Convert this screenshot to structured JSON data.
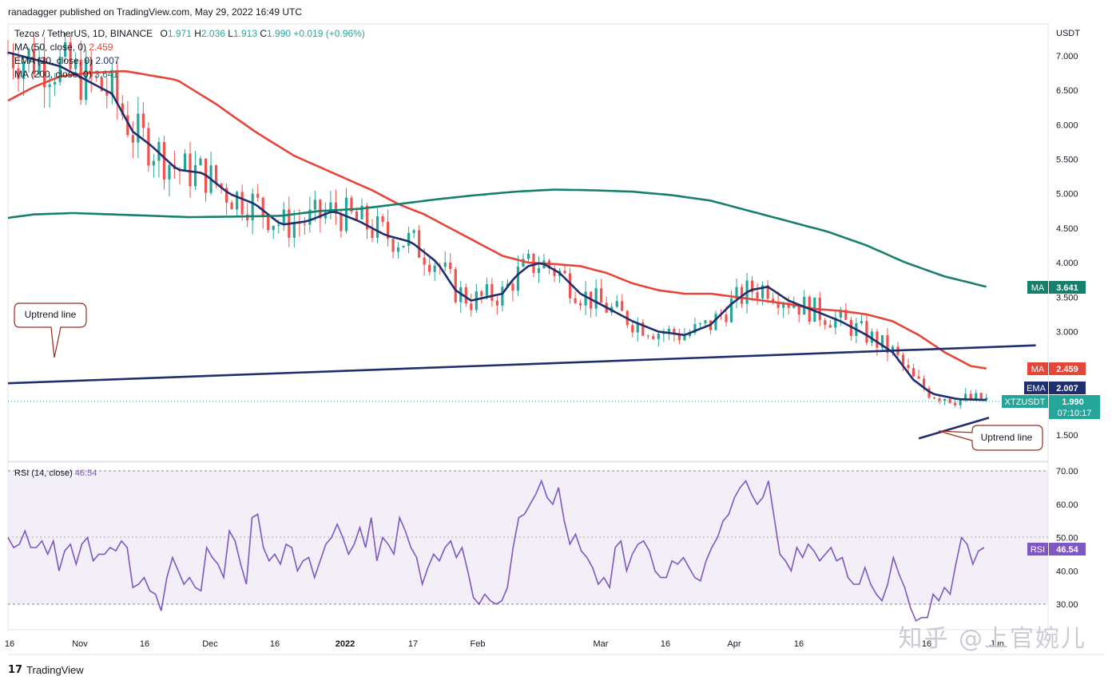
{
  "header": {
    "published": "ranadagger published on TradingView.com, May 29, 2022 16:49 UTC",
    "symbol": "Tezos / TetherUS, 1D, BINANCE",
    "ohlc": {
      "o_label": "O",
      "o": "1.971",
      "h_label": "H",
      "h": "2.036",
      "l_label": "L",
      "l": "1.913",
      "c_label": "C",
      "c": "1.990",
      "chg": "+0.019 (+0.96%)"
    },
    "indicators": [
      {
        "label": "MA (50, close, 0)",
        "value": "2.459",
        "color": "#e4463a"
      },
      {
        "label": "EMA (20, close, 0)",
        "value": "2.007",
        "color": "#1e2e6e"
      },
      {
        "label": "MA (200, close, 0)",
        "value": "3.641",
        "color": "#16806d"
      }
    ]
  },
  "axis": {
    "currency": "USDT",
    "price_ticks": [
      "7.000",
      "6.500",
      "6.000",
      "5.500",
      "5.000",
      "4.500",
      "4.000",
      "3.500",
      "3.000",
      "1.500"
    ],
    "rsi_ticks": [
      "70.00",
      "60.00",
      "50.00",
      "40.00",
      "30.00"
    ],
    "time_labels": [
      "16",
      "Nov",
      "16",
      "Dec",
      "16",
      "2022",
      "17",
      "Feb",
      "Mar",
      "16",
      "Apr",
      "16",
      "16",
      "Jun"
    ]
  },
  "badges": {
    "ma200": {
      "name": "MA",
      "value": "3.641",
      "color": "#16806d"
    },
    "ma50": {
      "name": "MA",
      "value": "2.459",
      "color": "#e4463a"
    },
    "ema20": {
      "name": "EMA",
      "value": "2.007",
      "color": "#1e2e6e"
    },
    "price": {
      "name": "XTZUSDT",
      "value": "1.990",
      "countdown": "07:10:17",
      "color": "#26a69a"
    },
    "rsi": {
      "name": "RSI",
      "value": "46.54",
      "color": "#7e57c2"
    }
  },
  "annotations": {
    "uptrend_left": "Uptrend line",
    "uptrend_right": "Uptrend line"
  },
  "rsi_pane": {
    "label": "RSI (14, close)",
    "value": "46.54"
  },
  "watermark": "知乎 @上官婉儿",
  "footer": {
    "logo": "TradingView"
  },
  "chart_data": {
    "type": "candlestick",
    "title": "Tezos / TetherUS, 1D, BINANCE",
    "price_range": [
      1.2,
      7.4
    ],
    "time_axis": "Oct 2021 – Jun 2022 (daily)",
    "series": [
      {
        "name": "MA (50, close, 0)",
        "color": "#e4463a",
        "last": 2.459,
        "points": [
          [
            0,
            6.35
          ],
          [
            10,
            6.55
          ],
          [
            20,
            6.7
          ],
          [
            30,
            6.75
          ],
          [
            45,
            6.78
          ],
          [
            65,
            6.65
          ],
          [
            80,
            6.3
          ],
          [
            95,
            5.9
          ],
          [
            110,
            5.55
          ],
          [
            125,
            5.3
          ],
          [
            140,
            5.05
          ],
          [
            150,
            4.85
          ],
          [
            160,
            4.7
          ],
          [
            170,
            4.5
          ],
          [
            180,
            4.3
          ],
          [
            190,
            4.1
          ],
          [
            200,
            4.0
          ],
          [
            210,
            3.98
          ],
          [
            220,
            3.95
          ],
          [
            230,
            3.85
          ],
          [
            240,
            3.7
          ],
          [
            250,
            3.6
          ],
          [
            260,
            3.55
          ],
          [
            270,
            3.55
          ],
          [
            280,
            3.5
          ],
          [
            290,
            3.45
          ],
          [
            300,
            3.4
          ],
          [
            310,
            3.33
          ],
          [
            320,
            3.3
          ],
          [
            330,
            3.25
          ],
          [
            340,
            3.15
          ],
          [
            350,
            2.95
          ],
          [
            360,
            2.7
          ],
          [
            370,
            2.5
          ],
          [
            377,
            2.459
          ]
        ]
      },
      {
        "name": "EMA (20, close, 0)",
        "color": "#1e2e6e",
        "last": 2.007,
        "points": [
          [
            0,
            7.05
          ],
          [
            10,
            6.95
          ],
          [
            20,
            6.85
          ],
          [
            30,
            6.65
          ],
          [
            40,
            6.45
          ],
          [
            48,
            5.9
          ],
          [
            55,
            5.7
          ],
          [
            65,
            5.35
          ],
          [
            75,
            5.3
          ],
          [
            85,
            5.0
          ],
          [
            95,
            4.85
          ],
          [
            105,
            4.55
          ],
          [
            115,
            4.6
          ],
          [
            125,
            4.75
          ],
          [
            135,
            4.6
          ],
          [
            145,
            4.4
          ],
          [
            155,
            4.3
          ],
          [
            165,
            4.0
          ],
          [
            172,
            3.6
          ],
          [
            178,
            3.45
          ],
          [
            190,
            3.55
          ],
          [
            195,
            3.8
          ],
          [
            200,
            3.95
          ],
          [
            205,
            4.0
          ],
          [
            212,
            3.85
          ],
          [
            220,
            3.55
          ],
          [
            230,
            3.35
          ],
          [
            240,
            3.15
          ],
          [
            250,
            3.0
          ],
          [
            260,
            2.95
          ],
          [
            270,
            3.1
          ],
          [
            278,
            3.4
          ],
          [
            285,
            3.6
          ],
          [
            292,
            3.65
          ],
          [
            300,
            3.45
          ],
          [
            310,
            3.3
          ],
          [
            320,
            3.15
          ],
          [
            330,
            2.95
          ],
          [
            340,
            2.7
          ],
          [
            348,
            2.3
          ],
          [
            355,
            2.1
          ],
          [
            365,
            2.02
          ],
          [
            377,
            2.007
          ]
        ]
      },
      {
        "name": "MA (200, close, 0)",
        "color": "#16806d",
        "last": 3.641,
        "points": [
          [
            0,
            4.65
          ],
          [
            10,
            4.7
          ],
          [
            25,
            4.72
          ],
          [
            40,
            4.7
          ],
          [
            55,
            4.68
          ],
          [
            70,
            4.66
          ],
          [
            90,
            4.67
          ],
          [
            105,
            4.68
          ],
          [
            120,
            4.75
          ],
          [
            135,
            4.78
          ],
          [
            150,
            4.85
          ],
          [
            165,
            4.92
          ],
          [
            180,
            4.98
          ],
          [
            195,
            5.03
          ],
          [
            210,
            5.06
          ],
          [
            225,
            5.05
          ],
          [
            240,
            5.03
          ],
          [
            255,
            4.98
          ],
          [
            270,
            4.9
          ],
          [
            285,
            4.75
          ],
          [
            300,
            4.6
          ],
          [
            315,
            4.45
          ],
          [
            330,
            4.25
          ],
          [
            345,
            4.0
          ],
          [
            360,
            3.8
          ],
          [
            377,
            3.641
          ]
        ]
      }
    ],
    "candles_ohlc_summary": {
      "last": {
        "open": 1.971,
        "high": 2.036,
        "low": 1.913,
        "close": 1.99
      }
    },
    "trendlines": [
      {
        "name": "support",
        "from": [
          0,
          2.25
        ],
        "to": [
          395,
          2.8
        ]
      },
      {
        "name": "short uptrend",
        "from": [
          350,
          1.45
        ],
        "to": [
          377,
          1.75
        ]
      }
    ],
    "rsi": {
      "name": "RSI (14, close)",
      "last": 46.54,
      "range": [
        20,
        70
      ],
      "band": [
        30,
        70
      ],
      "values": [
        50,
        47,
        48,
        52,
        47,
        47,
        49,
        45,
        49,
        40,
        46,
        48,
        42,
        48,
        50,
        43,
        45,
        45,
        47,
        46,
        49,
        47,
        35,
        36,
        38,
        34,
        33,
        28,
        38,
        44,
        40,
        36,
        38,
        35,
        34,
        47,
        44,
        42,
        38,
        52,
        49,
        42,
        36,
        56,
        57,
        47,
        43,
        45,
        42,
        48,
        47,
        40,
        43,
        44,
        38,
        43,
        48,
        50,
        54,
        50,
        45,
        48,
        53,
        47,
        56,
        43,
        50,
        48,
        45,
        56,
        52,
        47,
        44,
        36,
        41,
        45,
        43,
        47,
        49,
        44,
        47,
        40,
        32,
        30,
        33,
        31,
        30,
        31,
        35,
        47,
        56,
        57,
        60,
        63,
        67,
        62,
        60,
        65,
        55,
        48,
        51,
        46,
        44,
        41,
        36,
        38,
        35,
        47,
        49,
        40,
        45,
        48,
        49,
        46,
        40,
        38,
        38,
        43,
        42,
        44,
        41,
        38,
        37,
        43,
        47,
        50,
        55,
        57,
        62,
        65,
        67,
        63,
        60,
        62,
        67,
        56,
        45,
        43,
        40,
        47,
        44,
        48,
        46,
        43,
        45,
        47,
        43,
        44,
        38,
        36,
        36,
        41,
        36,
        33,
        31,
        36,
        44,
        39,
        35,
        29,
        25,
        26,
        26,
        33,
        31,
        35,
        33,
        42,
        50,
        48,
        42,
        46,
        47
      ]
    }
  }
}
